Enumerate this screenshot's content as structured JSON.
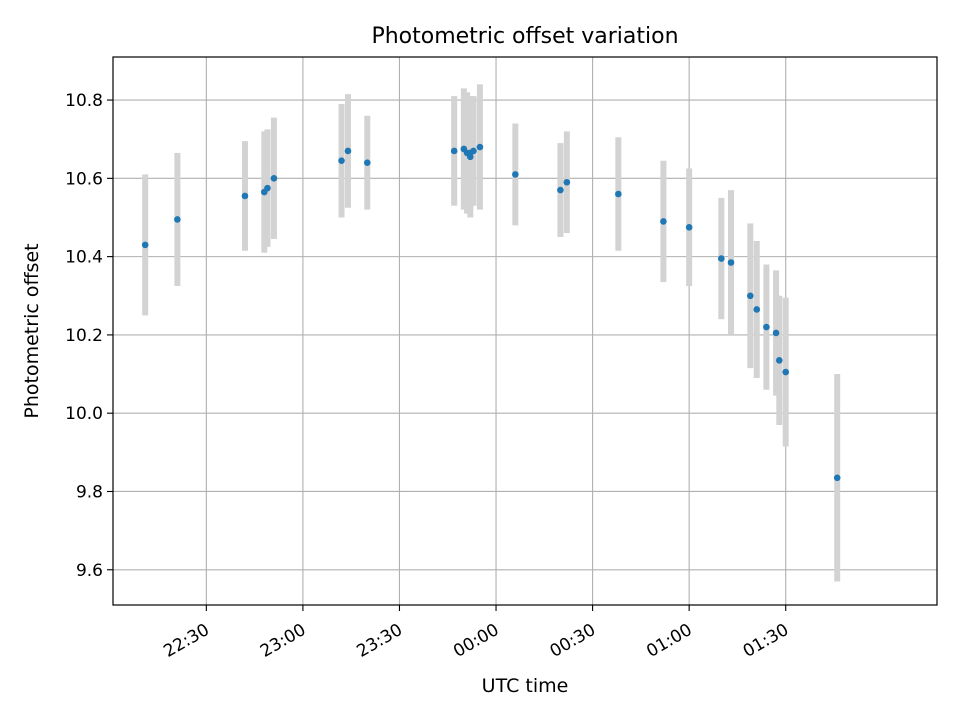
{
  "chart_data": {
    "type": "scatter",
    "title": "Photometric offset variation",
    "xlabel": "UTC time",
    "ylabel": "Photometric offset",
    "xticks": [
      "22:30",
      "23:00",
      "23:30",
      "00:00",
      "00:30",
      "01:00",
      "01:30"
    ],
    "yticks": [
      "9.6",
      "9.8",
      "10.0",
      "10.2",
      "10.4",
      "10.6",
      "10.8"
    ],
    "xlim": [
      "22:01",
      "02:17"
    ],
    "ylim": [
      9.51,
      10.91
    ],
    "grid": true,
    "series": [
      {
        "x": [
          "22:11",
          "22:21",
          "22:42",
          "22:48",
          "22:49",
          "22:51",
          "23:12",
          "23:14",
          "23:20",
          "23:47",
          "23:50",
          "23:51",
          "23:52",
          "23:52",
          "23:53",
          "23:55",
          "00:06",
          "00:20",
          "00:22",
          "00:38",
          "00:52",
          "01:00",
          "01:10",
          "01:13",
          "01:19",
          "01:21",
          "01:24",
          "01:27",
          "01:28",
          "01:30",
          "01:46"
        ],
        "y": [
          10.43,
          10.495,
          10.555,
          10.565,
          10.575,
          10.6,
          10.645,
          10.67,
          10.64,
          10.67,
          10.675,
          10.665,
          10.655,
          10.665,
          10.67,
          10.68,
          10.61,
          10.57,
          10.59,
          10.56,
          10.49,
          10.475,
          10.395,
          10.385,
          10.3,
          10.265,
          10.22,
          10.205,
          10.135,
          10.105,
          9.835
        ],
        "yerr": [
          0.18,
          0.17,
          0.14,
          0.155,
          0.15,
          0.155,
          0.145,
          0.145,
          0.12,
          0.14,
          0.155,
          0.155,
          0.155,
          0.145,
          0.14,
          0.16,
          0.13,
          0.12,
          0.13,
          0.145,
          0.155,
          0.15,
          0.155,
          0.185,
          0.185,
          0.175,
          0.16,
          0.16,
          0.165,
          0.19,
          0.265
        ],
        "marker_color": "#1f77b4",
        "errorbar_color": "#d3d3d3"
      }
    ]
  }
}
